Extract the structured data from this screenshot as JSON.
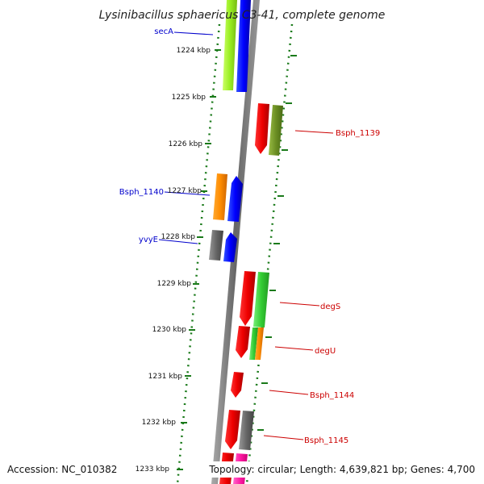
{
  "title": "Lysinibacillus sphaericus C3-41, complete genome",
  "footer": {
    "accession": "Accession: NC_010382",
    "topology": "Topology: circular; Length: 4,639,821 bp; Genes: 4,700"
  },
  "ticks": [
    "1224 kbp",
    "1225 kbp",
    "1226 kbp",
    "1227 kbp",
    "1228 kbp",
    "1229 kbp",
    "1230 kbp",
    "1231 kbp",
    "1232 kbp",
    "1233 kbp"
  ],
  "gene_labels": [
    {
      "id": "secA",
      "text": "secA",
      "strand": "minus"
    },
    {
      "id": "Bsph_1139",
      "text": "Bsph_1139",
      "strand": "plus"
    },
    {
      "id": "Bsph_1140",
      "text": "Bsph_1140",
      "strand": "minus"
    },
    {
      "id": "yvyE",
      "text": "yvyE",
      "strand": "minus"
    },
    {
      "id": "degS",
      "text": "degS",
      "strand": "plus"
    },
    {
      "id": "degU",
      "text": "degU",
      "strand": "plus"
    },
    {
      "id": "Bsph_1144",
      "text": "Bsph_1144",
      "strand": "plus"
    },
    {
      "id": "Bsph_1145",
      "text": "Bsph_1145",
      "strand": "plus"
    }
  ],
  "colors": {
    "minus_label": "#0000cc",
    "plus_label": "#cc0000",
    "tick": "#1a7a1a",
    "backbone": "#777777"
  }
}
